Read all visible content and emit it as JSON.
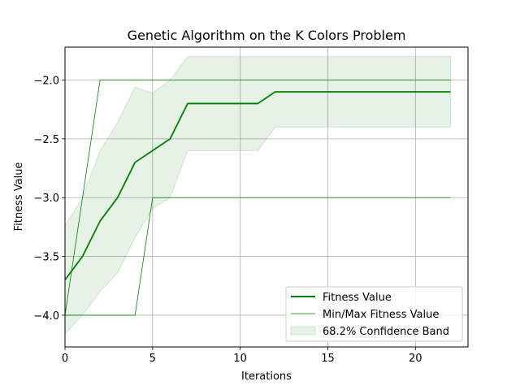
{
  "chart_data": {
    "type": "line",
    "title": "Genetic Algorithm on the K Colors Problem",
    "xlabel": "Iterations",
    "ylabel": "Fitness Value",
    "xlim": [
      0,
      23
    ],
    "ylim": [
      -4.27,
      -1.72
    ],
    "grid": true,
    "legend_position": "bottom-right",
    "x_ticks": [
      0,
      5,
      10,
      15,
      20
    ],
    "x_tick_labels": [
      "0",
      "5",
      "10",
      "15",
      "20"
    ],
    "y_ticks": [
      -4.0,
      -3.5,
      -3.0,
      -2.5,
      -2.0
    ],
    "y_tick_labels": [
      "−4.0",
      "−3.5",
      "−3.0",
      "−2.5",
      "−2.0"
    ],
    "x": [
      0,
      1,
      2,
      3,
      4,
      5,
      6,
      7,
      8,
      9,
      10,
      11,
      12,
      13,
      14,
      15,
      16,
      17,
      18,
      19,
      20,
      21,
      22
    ],
    "series": [
      {
        "name": "Fitness Value",
        "color": "#008000",
        "values": [
          -3.7,
          -3.5,
          -3.2,
          -3.0,
          -2.7,
          -2.6,
          -2.5,
          -2.2,
          -2.2,
          -2.2,
          -2.2,
          -2.2,
          -2.1,
          -2.1,
          -2.1,
          -2.1,
          -2.1,
          -2.1,
          -2.1,
          -2.1,
          -2.1,
          -2.1,
          -2.1
        ]
      },
      {
        "name": "Min/Max Fitness Value",
        "color": "#008000",
        "max_values": [
          -4.0,
          -3.0,
          -2.0,
          -2.0,
          -2.0,
          -2.0,
          -2.0,
          -2.0,
          -2.0,
          -2.0,
          -2.0,
          -2.0,
          -2.0,
          -2.0,
          -2.0,
          -2.0,
          -2.0,
          -2.0,
          -2.0,
          -2.0,
          -2.0,
          -2.0,
          -2.0
        ],
        "min_values": [
          -4.0,
          -4.0,
          -4.0,
          -4.0,
          -4.0,
          -3.0,
          -3.0,
          -3.0,
          -3.0,
          -3.0,
          -3.0,
          -3.0,
          -3.0,
          -3.0,
          -3.0,
          -3.0,
          -3.0,
          -3.0,
          -3.0,
          -3.0,
          -3.0,
          -3.0,
          -3.0
        ]
      },
      {
        "name": "68.2% Confidence Band",
        "color": "#008000",
        "upper": [
          -3.24,
          -3.0,
          -2.6,
          -2.36,
          -2.06,
          -2.11,
          -2.0,
          -1.8,
          -1.8,
          -1.8,
          -1.8,
          -1.8,
          -1.8,
          -1.8,
          -1.8,
          -1.8,
          -1.8,
          -1.8,
          -1.8,
          -1.8,
          -1.8,
          -1.8,
          -1.8
        ],
        "lower": [
          -4.16,
          -4.0,
          -3.8,
          -3.64,
          -3.34,
          -3.09,
          -3.0,
          -2.6,
          -2.6,
          -2.6,
          -2.6,
          -2.6,
          -2.4,
          -2.4,
          -2.4,
          -2.4,
          -2.4,
          -2.4,
          -2.4,
          -2.4,
          -2.4,
          -2.4,
          -2.4
        ]
      }
    ]
  }
}
